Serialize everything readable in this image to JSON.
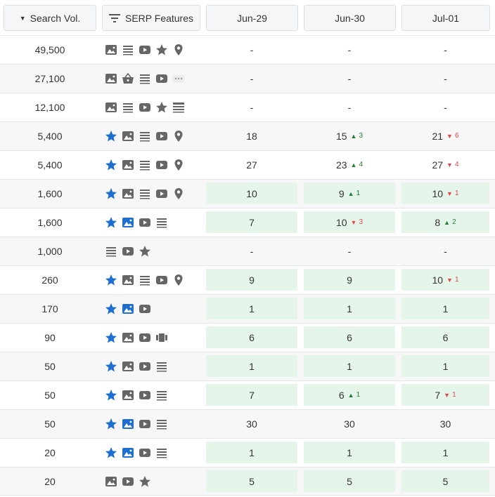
{
  "header": {
    "search_vol": "Search Vol.",
    "serp_features": "SERP Features",
    "dates": [
      "Jun-29",
      "Jun-30",
      "Jul-01"
    ]
  },
  "colors": {
    "accent_blue": "#1f6fd1",
    "icon_gray": "#666666",
    "up_green": "#1e7d32",
    "down_red": "#e0484b",
    "highlight_green": "#e6f5e9"
  },
  "rows": [
    {
      "vol": "49,500",
      "features": [
        "image",
        "list",
        "video",
        "star",
        "pin"
      ],
      "cells": [
        {
          "v": "-"
        },
        {
          "v": "-"
        },
        {
          "v": "-"
        }
      ]
    },
    {
      "vol": "27,100",
      "features": [
        "image",
        "basket",
        "list",
        "video",
        "more"
      ],
      "cells": [
        {
          "v": "-"
        },
        {
          "v": "-"
        },
        {
          "v": "-"
        }
      ]
    },
    {
      "vol": "12,100",
      "features": [
        "image",
        "list",
        "video",
        "star",
        "table"
      ],
      "cells": [
        {
          "v": "-"
        },
        {
          "v": "-"
        },
        {
          "v": "-"
        }
      ]
    },
    {
      "vol": "5,400",
      "features": [
        "star-blue",
        "image",
        "list",
        "video",
        "pin"
      ],
      "cells": [
        {
          "v": "18"
        },
        {
          "v": "15",
          "d": "up",
          "c": "3"
        },
        {
          "v": "21",
          "d": "down",
          "c": "6"
        }
      ]
    },
    {
      "vol": "5,400",
      "features": [
        "star-blue",
        "image",
        "list",
        "video",
        "pin"
      ],
      "cells": [
        {
          "v": "27"
        },
        {
          "v": "23",
          "d": "up",
          "c": "4"
        },
        {
          "v": "27",
          "d": "down",
          "c": "4"
        }
      ]
    },
    {
      "vol": "1,600",
      "features": [
        "star-blue",
        "image",
        "list",
        "video",
        "pin"
      ],
      "cells": [
        {
          "v": "10",
          "g": true
        },
        {
          "v": "9",
          "d": "up",
          "c": "1",
          "g": true
        },
        {
          "v": "10",
          "d": "down",
          "c": "1",
          "g": true
        }
      ]
    },
    {
      "vol": "1,600",
      "features": [
        "star-blue",
        "image-blue",
        "video",
        "list"
      ],
      "cells": [
        {
          "v": "7",
          "g": true
        },
        {
          "v": "10",
          "d": "down",
          "c": "3",
          "g": true
        },
        {
          "v": "8",
          "d": "up",
          "c": "2",
          "g": true
        }
      ]
    },
    {
      "vol": "1,000",
      "features": [
        "list",
        "video",
        "star"
      ],
      "cells": [
        {
          "v": "-"
        },
        {
          "v": "-"
        },
        {
          "v": "-"
        }
      ]
    },
    {
      "vol": "260",
      "features": [
        "star-blue",
        "image",
        "list",
        "video",
        "pin"
      ],
      "cells": [
        {
          "v": "9",
          "g": true
        },
        {
          "v": "9",
          "g": true
        },
        {
          "v": "10",
          "d": "down",
          "c": "1",
          "g": true
        }
      ]
    },
    {
      "vol": "170",
      "features": [
        "star-blue",
        "image-blue",
        "video"
      ],
      "cells": [
        {
          "v": "1",
          "g": true
        },
        {
          "v": "1",
          "g": true
        },
        {
          "v": "1",
          "g": true
        }
      ]
    },
    {
      "vol": "90",
      "features": [
        "star-blue",
        "image",
        "video",
        "carousel"
      ],
      "cells": [
        {
          "v": "6",
          "g": true
        },
        {
          "v": "6",
          "g": true
        },
        {
          "v": "6",
          "g": true
        }
      ]
    },
    {
      "vol": "50",
      "features": [
        "star-blue",
        "image",
        "video",
        "list"
      ],
      "cells": [
        {
          "v": "1",
          "g": true
        },
        {
          "v": "1",
          "g": true
        },
        {
          "v": "1",
          "g": true
        }
      ]
    },
    {
      "vol": "50",
      "features": [
        "star-blue",
        "image",
        "video",
        "list"
      ],
      "cells": [
        {
          "v": "7",
          "g": true
        },
        {
          "v": "6",
          "d": "up",
          "c": "1",
          "g": true
        },
        {
          "v": "7",
          "d": "down",
          "c": "1",
          "g": true
        }
      ]
    },
    {
      "vol": "50",
      "features": [
        "star-blue",
        "image-blue",
        "video",
        "list"
      ],
      "cells": [
        {
          "v": "30"
        },
        {
          "v": "30"
        },
        {
          "v": "30"
        }
      ]
    },
    {
      "vol": "20",
      "features": [
        "star-blue",
        "image-blue",
        "video",
        "list"
      ],
      "cells": [
        {
          "v": "1",
          "g": true
        },
        {
          "v": "1",
          "g": true
        },
        {
          "v": "1",
          "g": true
        }
      ]
    },
    {
      "vol": "20",
      "features": [
        "image",
        "video",
        "star"
      ],
      "cells": [
        {
          "v": "5",
          "g": true
        },
        {
          "v": "5",
          "g": true
        },
        {
          "v": "5",
          "g": true
        }
      ]
    }
  ]
}
